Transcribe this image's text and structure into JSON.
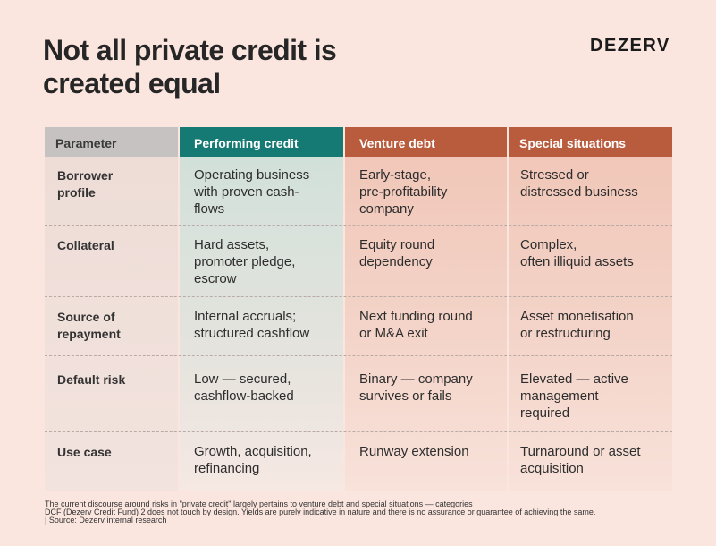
{
  "title": {
    "line1": "Not all private credit is",
    "line2": "created equal"
  },
  "brand": "DEZERV",
  "table": {
    "headers": [
      "Parameter",
      "Performing credit",
      "Venture debt",
      "Special situations"
    ],
    "rows": [
      {
        "parameter": "Borrower\nprofile",
        "performing": "Operating business\nwith proven cash-\nflows",
        "venture": "Early-stage,\npre-profitability\ncompany",
        "special": "Stressed or\ndistressed business"
      },
      {
        "parameter": "Collateral",
        "performing": "Hard assets,\npromoter pledge,\nescrow",
        "venture": "Equity round\ndependency",
        "special": "Complex,\noften illiquid assets"
      },
      {
        "parameter": "Source of\nrepayment",
        "performing": "Internal accruals;\nstructured cashflow",
        "venture": "Next funding round\nor M&A exit",
        "special": "Asset monetisation\nor restructuring"
      },
      {
        "parameter": "Default risk",
        "performing": "Low — secured,\ncashflow-backed",
        "venture": "Binary — company\nsurvives or fails",
        "special": "Elevated — active\nmanagement\nrequired"
      },
      {
        "parameter": "Use case",
        "performing": "Growth, acquisition,\nrefinancing",
        "venture": "Runway extension",
        "special": "Turnaround or asset\nacquisition"
      }
    ]
  },
  "footnote": {
    "line1": "The current discourse around risks in \"private credit\" largely pertains to venture debt and special situations — categories",
    "line2": "DCF (Dezerv Credit Fund) 2 does not touch by design. Yields are purely indicative in nature and there is no assurance or guarantee of achieving the same.",
    "line3": "| Source: Dezerv internal research"
  }
}
